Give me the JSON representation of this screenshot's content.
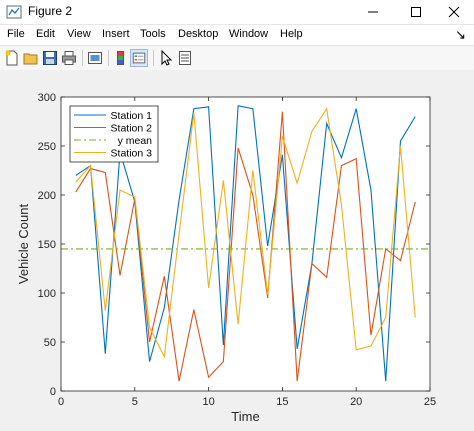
{
  "window": {
    "title": "Figure 2",
    "buttons": {
      "minimize": "—",
      "maximize": "☐",
      "close": "✕"
    }
  },
  "menu": {
    "items": [
      "File",
      "Edit",
      "View",
      "Insert",
      "Tools",
      "Desktop",
      "Window",
      "Help"
    ],
    "close_glyph": "↘"
  },
  "toolbar": {
    "icons": [
      "new-figure-icon",
      "open-file-icon",
      "save-icon",
      "print-icon",
      "link-plot-icon",
      "insert-colorbar-icon",
      "insert-legend-icon",
      "edit-plot-icon",
      "property-inspector-icon"
    ]
  },
  "chart_data": {
    "type": "line",
    "title": "",
    "xlabel": "Time",
    "ylabel": "Vehicle Count",
    "xlim": [
      0,
      25
    ],
    "ylim": [
      0,
      300
    ],
    "xticks": [
      0,
      5,
      10,
      15,
      20,
      25
    ],
    "yticks": [
      0,
      50,
      100,
      150,
      200,
      250,
      300
    ],
    "grid": false,
    "legend_position": "top-left",
    "x": [
      1,
      2,
      3,
      4,
      5,
      6,
      7,
      8,
      9,
      10,
      11,
      12,
      13,
      14,
      15,
      16,
      17,
      18,
      19,
      20,
      21,
      22,
      23,
      24
    ],
    "series": [
      {
        "name": "Station 1",
        "color": "#0072bd",
        "style": "solid",
        "values": [
          220,
          230,
          38,
          244,
          193,
          30,
          85,
          195,
          288,
          290,
          47,
          291,
          288,
          148,
          241,
          43,
          130,
          273,
          238,
          288,
          205,
          10,
          255,
          280
        ]
      },
      {
        "name": "Station 2",
        "color": "#d95319",
        "style": "solid",
        "values": [
          203,
          227,
          223,
          118,
          196,
          50,
          117,
          10,
          83,
          14,
          30,
          248,
          200,
          95,
          285,
          10,
          130,
          116,
          230,
          237,
          57,
          145,
          133,
          193
        ]
      },
      {
        "name": "y mean",
        "color": "#77ac30",
        "style": "dashdot",
        "values": [
          145,
          145,
          145,
          145,
          145,
          145,
          145,
          145,
          145,
          145,
          145,
          145,
          145,
          145,
          145,
          145,
          145,
          145,
          145,
          145,
          145,
          145,
          145,
          145
        ]
      },
      {
        "name": "Station 3",
        "color": "#edb120",
        "style": "solid",
        "values": [
          213,
          230,
          82,
          205,
          198,
          65,
          35,
          160,
          284,
          105,
          215,
          68,
          225,
          98,
          260,
          212,
          265,
          288,
          190,
          42,
          46,
          75,
          250,
          75
        ]
      }
    ]
  }
}
